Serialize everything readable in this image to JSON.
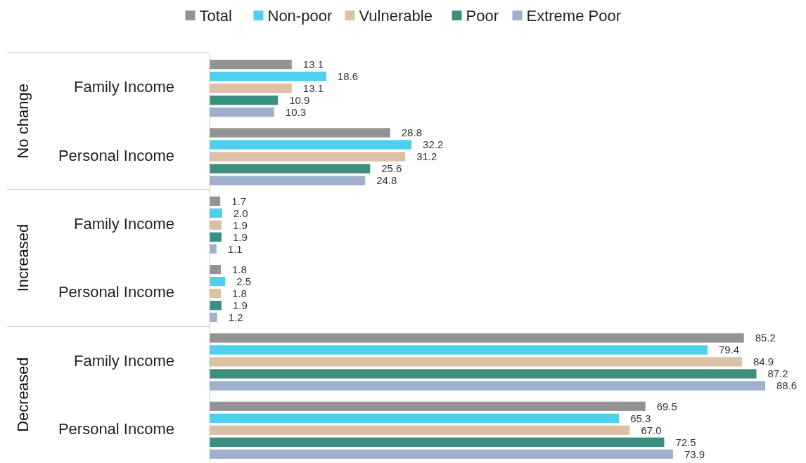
{
  "chart_data": {
    "type": "bar",
    "orientation": "horizontal",
    "categories": [
      "Family Income",
      "Personal Income",
      "Family Income",
      "Personal Income",
      "Family Income",
      "Personal Income"
    ],
    "series": [
      {
        "name": "Total",
        "color": "#939393",
        "values": [
          13.1,
          28.8,
          1.7,
          1.8,
          85.2,
          69.5
        ],
        "value_labels": [
          "13.1",
          "28.8",
          "1.7",
          "1.8",
          "85.2",
          "69.5"
        ]
      },
      {
        "name": "Non-poor",
        "color": "#4dcfef",
        "values": [
          18.6,
          32.2,
          2.0,
          2.5,
          79.4,
          65.3
        ],
        "value_labels": [
          "18.6",
          "32.2",
          "2.0",
          "2.5",
          "79.4",
          "65.3"
        ]
      },
      {
        "name": "Vulnerable",
        "color": "#dcc1a5",
        "values": [
          13.1,
          31.2,
          1.9,
          1.8,
          84.9,
          67.0
        ],
        "value_labels": [
          "13.1",
          "31.2",
          "1.9",
          "1.8",
          "84.9",
          "67.0"
        ]
      },
      {
        "name": "Poor",
        "color": "#3a8f7f",
        "values": [
          10.9,
          25.6,
          1.9,
          1.9,
          87.2,
          72.5
        ],
        "value_labels": [
          "10.9",
          "25.6",
          "1.9",
          "1.9",
          "87.2",
          "72.5"
        ]
      },
      {
        "name": "Extreme Poor",
        "color": "#9fb0cf",
        "values": [
          10.3,
          24.8,
          1.1,
          1.2,
          88.6,
          73.9
        ],
        "value_labels": [
          "10.3",
          "24.8",
          "1.1",
          "1.2",
          "88.6",
          "73.9"
        ]
      }
    ],
    "annotations": [
      "No change",
      "Increased",
      "Decreased"
    ],
    "legend": "top"
  }
}
